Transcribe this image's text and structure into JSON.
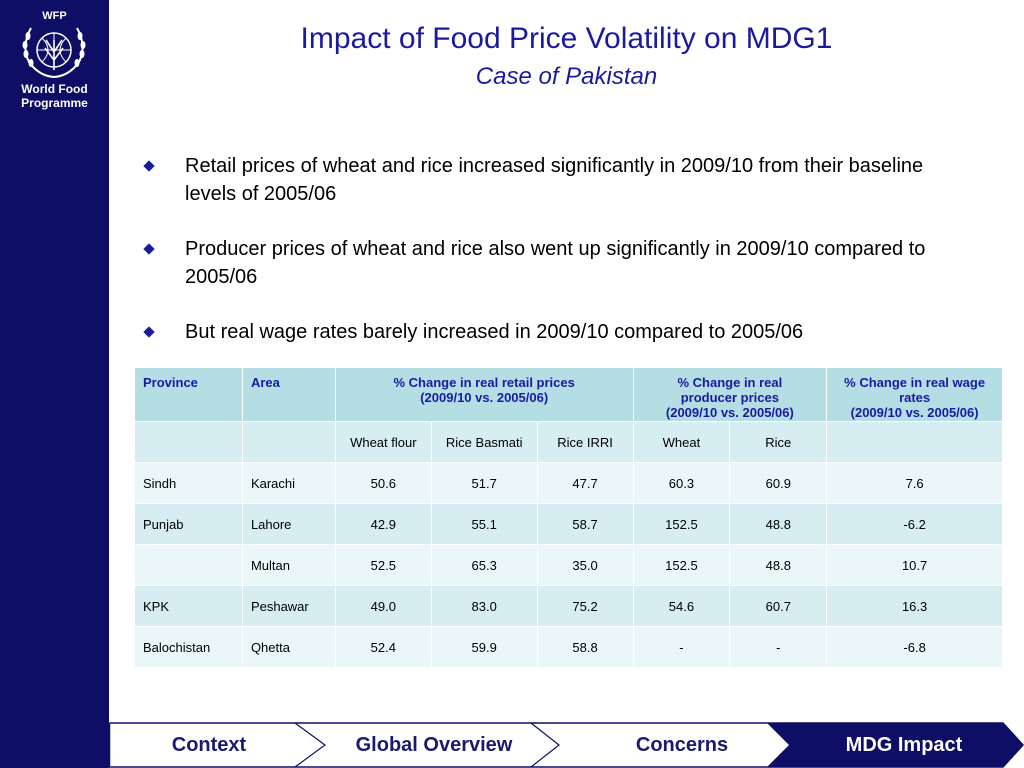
{
  "logo": {
    "acronym": "WFP",
    "line1": "World Food",
    "line2": "Programme"
  },
  "title": "Impact of Food Price Volatility on MDG1",
  "subtitle": "Case of Pakistan",
  "bullets": [
    "Retail prices of wheat and rice increased significantly in 2009/10 from their baseline levels of 2005/06",
    "Producer prices of wheat and rice also went up significantly in 2009/10 compared to 2005/06",
    "But real wage rates barely increased in 2009/10 compared to 2005/06"
  ],
  "table": {
    "headers": {
      "province": "Province",
      "area": "Area",
      "retail": [
        "% Change in real retail prices",
        "(2009/10 vs. 2005/06)"
      ],
      "producer": [
        "% Change in real",
        "producer prices",
        "(2009/10 vs. 2005/06)"
      ],
      "wage": [
        "% Change in real wage",
        "rates",
        "(2009/10 vs. 2005/06)"
      ]
    },
    "subheaders": [
      "",
      "",
      "Wheat flour",
      "Rice Basmati",
      "Rice IRRI",
      "Wheat",
      "Rice",
      ""
    ],
    "rows": [
      [
        "Sindh",
        "Karachi",
        "50.6",
        "51.7",
        "47.7",
        "60.3",
        "60.9",
        "7.6"
      ],
      [
        "Punjab",
        "Lahore",
        "42.9",
        "55.1",
        "58.7",
        "152.5",
        "48.8",
        "-6.2"
      ],
      [
        "",
        "Multan",
        "52.5",
        "65.3",
        "35.0",
        "152.5",
        "48.8",
        "10.7"
      ],
      [
        "KPK",
        "Peshawar",
        "49.0",
        "83.0",
        "75.2",
        "54.6",
        "60.7",
        "16.3"
      ],
      [
        "Balochistan",
        "Qhetta",
        "52.4",
        "59.9",
        "58.8",
        "-",
        "-",
        "-6.8"
      ]
    ]
  },
  "nav": [
    "Context",
    "Global Overview",
    "Concerns",
    "MDG Impact"
  ],
  "colors": {
    "sidebar": "#0f0e66",
    "title": "#1a1aa0",
    "header_bg": "#b4dde4",
    "row_odd": "#d6eef2",
    "row_even": "#ebf6f8",
    "nav_active": "#0f0e66"
  }
}
